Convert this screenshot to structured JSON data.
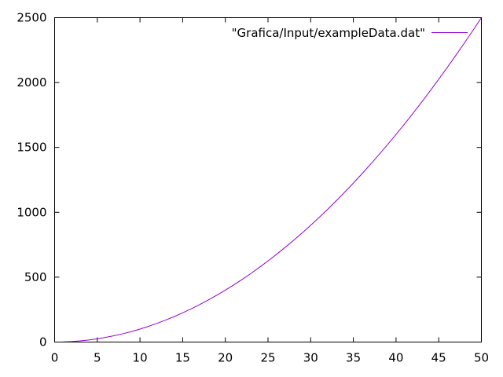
{
  "chart_data": {
    "type": "line",
    "title": "",
    "xlabel": "",
    "ylabel": "",
    "xlim": [
      0,
      50
    ],
    "ylim": [
      0,
      2500
    ],
    "x_ticks": [
      0,
      5,
      10,
      15,
      20,
      25,
      30,
      35,
      40,
      45,
      50
    ],
    "y_ticks": [
      0,
      500,
      1000,
      1500,
      2000,
      2500
    ],
    "x_tick_labels": [
      "0",
      "5",
      "10",
      "15",
      "20",
      "25",
      "30",
      "35",
      "40",
      "45",
      "50"
    ],
    "y_tick_labels": [
      "0",
      "500",
      "1000",
      "1500",
      "2000",
      "2500"
    ],
    "grid": false,
    "legend_position": "top-right",
    "series": [
      {
        "name": "\"Grafica/Input/exampleData.dat\"",
        "color": "#9400d3",
        "x": [
          1,
          2,
          3,
          4,
          5,
          6,
          7,
          8,
          9,
          10,
          11,
          12,
          13,
          14,
          15,
          16,
          17,
          18,
          19,
          20,
          21,
          22,
          23,
          24,
          25,
          26,
          27,
          28,
          29,
          30,
          31,
          32,
          33,
          34,
          35,
          36,
          37,
          38,
          39,
          40,
          41,
          42,
          43,
          44,
          45,
          46,
          47,
          48,
          49,
          50
        ],
        "y": [
          1,
          4,
          9,
          16,
          25,
          36,
          49,
          64,
          81,
          100,
          121,
          144,
          169,
          196,
          225,
          256,
          289,
          324,
          361,
          400,
          441,
          484,
          529,
          576,
          625,
          676,
          729,
          784,
          841,
          900,
          961,
          1024,
          1089,
          1156,
          1225,
          1296,
          1369,
          1444,
          1521,
          1600,
          1681,
          1764,
          1849,
          1936,
          2025,
          2116,
          2209,
          2304,
          2401,
          2500
        ]
      }
    ]
  }
}
